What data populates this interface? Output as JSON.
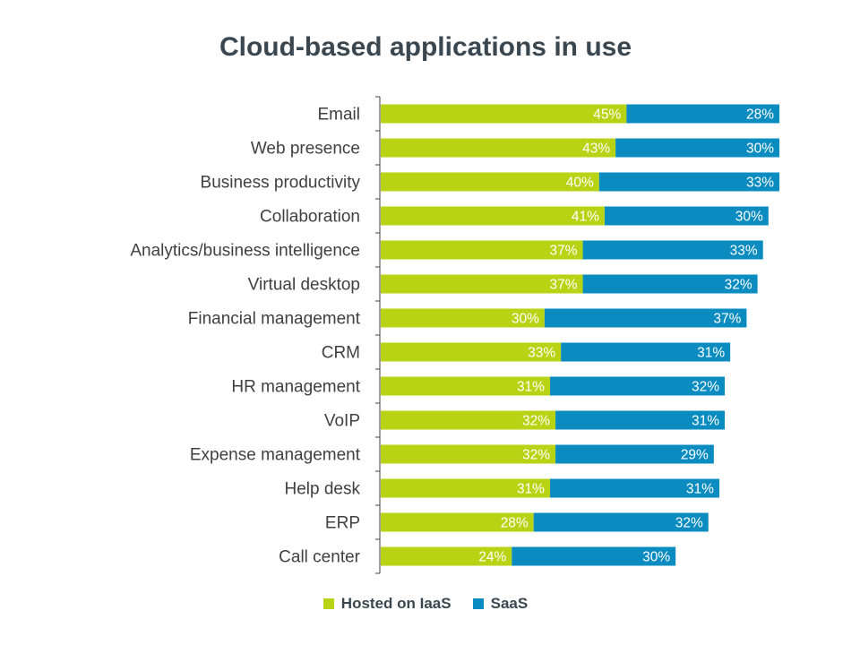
{
  "colors": {
    "iaas": "#b8d314",
    "saas": "#0b8cc1",
    "axis": "#404040"
  },
  "chart_data": {
    "type": "bar",
    "orientation": "horizontal",
    "stacked": true,
    "title": "Cloud-based applications in use",
    "categories": [
      "Email",
      "Web presence",
      "Business productivity",
      "Collaboration",
      "Analytics/business intelligence",
      "Virtual desktop",
      "Financial management",
      "CRM",
      "HR management",
      "VoIP",
      "Expense management",
      "Help desk",
      "ERP",
      "Call center"
    ],
    "series": [
      {
        "name": "Hosted on IaaS",
        "values": [
          45,
          43,
          40,
          41,
          37,
          37,
          30,
          33,
          31,
          32,
          32,
          31,
          28,
          24
        ]
      },
      {
        "name": "SaaS",
        "values": [
          28,
          30,
          33,
          30,
          33,
          32,
          37,
          31,
          32,
          31,
          29,
          31,
          32,
          30
        ]
      }
    ],
    "value_suffix": "%",
    "xlim": [
      0,
      73
    ],
    "legend_position": "bottom",
    "grid": false
  }
}
